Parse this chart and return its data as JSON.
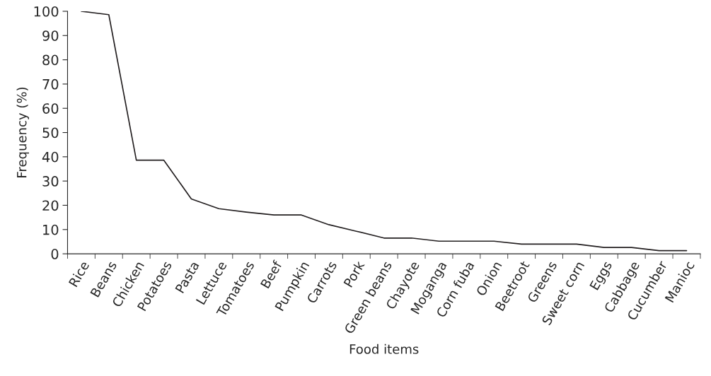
{
  "chart_data": {
    "type": "line",
    "xlabel": "Food items",
    "ylabel": "Frequency (%)",
    "categories": [
      "Rice",
      "Beans",
      "Chicken",
      "Potatoes",
      "Pasta",
      "Lettuce",
      "Tomatoes",
      "Beef",
      "Pumpkin",
      "Carrots",
      "Pork",
      "Green beans",
      "Chayote",
      "Moganga",
      "Corn fuba",
      "Onion",
      "Beetroot",
      "Greens",
      "Sweet corn",
      "Eggs",
      "Cabbage",
      "Cucumber",
      "Manioc"
    ],
    "series": [
      {
        "color": "#231f20",
        "values": [
          100,
          98.6,
          38.6,
          38.6,
          22.6,
          18.6,
          17.2,
          16,
          16,
          12,
          9.3,
          6.5,
          6.5,
          5.2,
          5.2,
          5.2,
          4,
          4,
          4,
          2.6,
          2.6,
          1.3,
          1.3
        ]
      }
    ],
    "ylim": [
      0,
      100
    ],
    "yticks": [
      0,
      10,
      20,
      30,
      40,
      50,
      60,
      70,
      80,
      90,
      100
    ],
    "grid": false,
    "marker": "none",
    "line_style": "solid"
  }
}
